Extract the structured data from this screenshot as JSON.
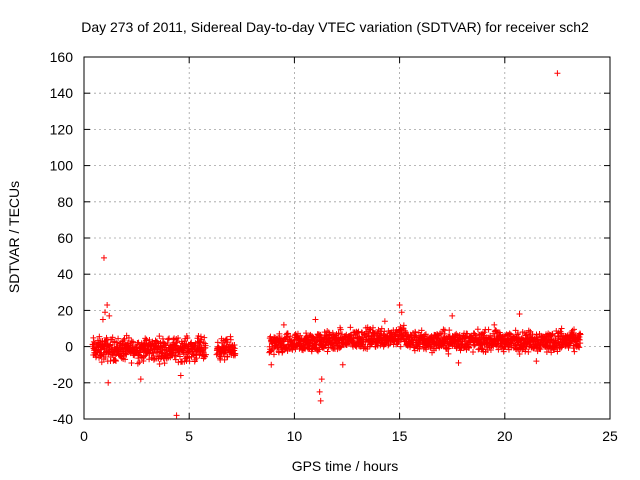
{
  "chart_data": {
    "type": "scatter",
    "title": "Day 273 of 2011, Sidereal Day-to-day VTEC variation (SDTVAR) for receiver sch2",
    "xlabel": "GPS time / hours",
    "ylabel": "SDTVAR / TECUs",
    "xlim": [
      0,
      25
    ],
    "ylim": [
      -40,
      160
    ],
    "xticks": [
      0,
      5,
      10,
      15,
      20,
      25
    ],
    "yticks": [
      -40,
      -20,
      0,
      20,
      40,
      60,
      80,
      100,
      120,
      140,
      160
    ],
    "grid": true,
    "marker": "+",
    "series_color": "#ff0000",
    "series": [
      {
        "name": "SDTVAR",
        "segments": [
          {
            "start": 0.4,
            "end": 5.8,
            "center": -1.5,
            "spread": 7
          },
          {
            "start": 6.3,
            "end": 7.2,
            "center": -1.5,
            "spread": 6
          },
          {
            "start": 8.8,
            "end": 15.3,
            "center": 0.5,
            "spread": 6,
            "trend_to": 6
          },
          {
            "start": 15.3,
            "end": 23.6,
            "center": 3,
            "spread": 6
          }
        ],
        "points": [
          {
            "x": 0.95,
            "y": 49
          },
          {
            "x": 1.1,
            "y": 23
          },
          {
            "x": 1.0,
            "y": 19
          },
          {
            "x": 1.2,
            "y": 17
          },
          {
            "x": 0.9,
            "y": 15
          },
          {
            "x": 1.15,
            "y": -20
          },
          {
            "x": 2.7,
            "y": -18
          },
          {
            "x": 4.4,
            "y": -38
          },
          {
            "x": 4.6,
            "y": -16
          },
          {
            "x": 8.9,
            "y": -10
          },
          {
            "x": 9.5,
            "y": 12
          },
          {
            "x": 11.0,
            "y": 15
          },
          {
            "x": 11.2,
            "y": -25
          },
          {
            "x": 11.25,
            "y": -30
          },
          {
            "x": 11.3,
            "y": -18
          },
          {
            "x": 12.3,
            "y": -10
          },
          {
            "x": 14.3,
            "y": 14
          },
          {
            "x": 15.0,
            "y": 23
          },
          {
            "x": 15.1,
            "y": 19
          },
          {
            "x": 17.5,
            "y": 17
          },
          {
            "x": 17.8,
            "y": -9
          },
          {
            "x": 19.5,
            "y": 12
          },
          {
            "x": 20.7,
            "y": 18
          },
          {
            "x": 21.5,
            "y": -8
          },
          {
            "x": 22.0,
            "y": -3
          },
          {
            "x": 22.5,
            "y": 151
          },
          {
            "x": 22.7,
            "y": 10
          }
        ]
      }
    ]
  }
}
